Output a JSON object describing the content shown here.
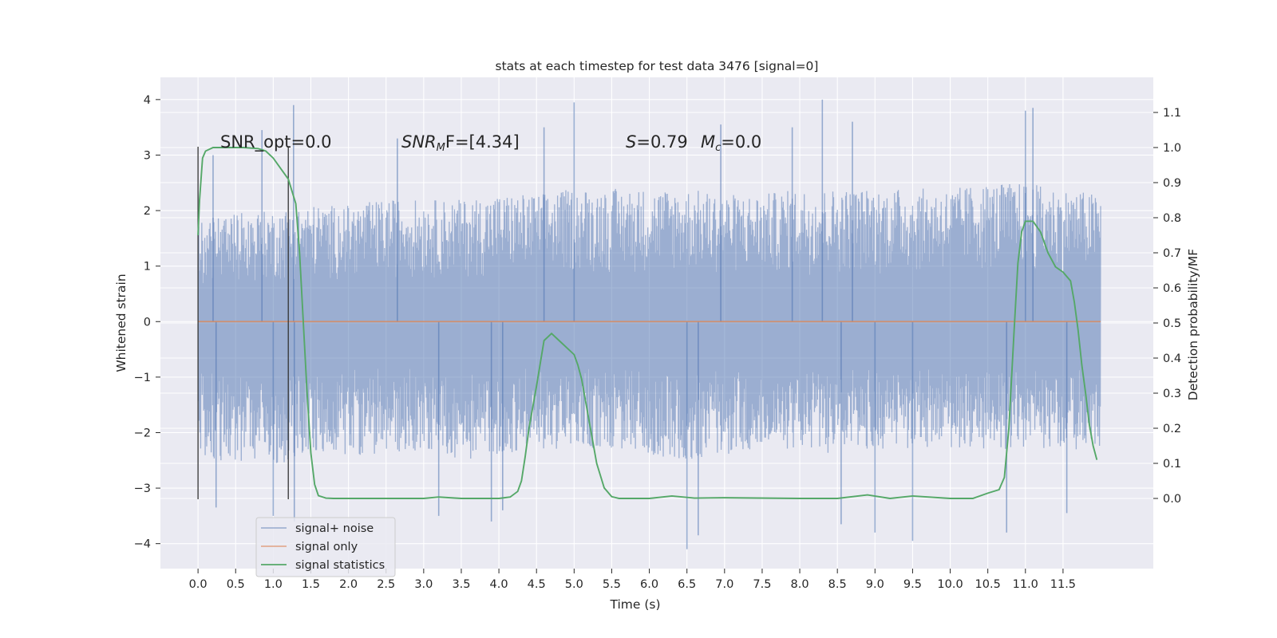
{
  "chart_data": {
    "type": "line",
    "title": "stats at each timestep for test data 3476 [signal=0]",
    "xlabel": "Time (s)",
    "ylabel_left": "Whitened strain",
    "ylabel_right": "Detection probability/MF",
    "xlim": [
      -0.5,
      12.7
    ],
    "ylim_left": [
      -4.45,
      4.4
    ],
    "ylim_right": [
      -0.2,
      1.2
    ],
    "x_ticks": [
      "0.0",
      "0.5",
      "1.0",
      "1.5",
      "2.0",
      "2.5",
      "3.0",
      "3.5",
      "4.0",
      "4.5",
      "5.0",
      "5.5",
      "6.0",
      "6.5",
      "7.0",
      "7.5",
      "8.0",
      "8.5",
      "9.0",
      "9.5",
      "10.0",
      "10.5",
      "11.0",
      "11.5"
    ],
    "y_ticks_left": [
      "4",
      "3",
      "2",
      "1",
      "0",
      "−1",
      "−2",
      "−3",
      "−4"
    ],
    "y_ticks_right": [
      "1.1",
      "1.0",
      "0.9",
      "0.8",
      "0.7",
      "0.6",
      "0.5",
      "0.4",
      "0.3",
      "0.2",
      "0.1",
      "0.0"
    ],
    "grid": true,
    "legend_position": "lower-left",
    "colors": {
      "background": "#eaeaf2",
      "grid": "#ffffff",
      "noise": "#4c72b0",
      "signal": "#dd8452",
      "stats": "#55a868",
      "markers": "#333333"
    },
    "annotations": {
      "snr_opt": "SNR_opt=0.0",
      "snr_mf_base": "SNR",
      "snr_mf_sub": "M",
      "snr_mf_rest": "F=[4.34]",
      "s_base": "S",
      "s_rest": "=0.79",
      "mc_base": "M",
      "mc_sub": "c",
      "mc_rest": "=0.0"
    },
    "vertical_markers": [
      0.0,
      1.2
    ],
    "series": [
      {
        "name": "signal+ noise",
        "kind": "noise",
        "x_range": [
          0.0,
          12.0
        ],
        "envelope": [
          [
            0.0,
            1.85,
            -2.5
          ],
          [
            0.5,
            1.95,
            -2.5
          ],
          [
            1.0,
            2.0,
            -2.6
          ],
          [
            1.5,
            2.1,
            -2.4
          ],
          [
            2.0,
            2.1,
            -2.4
          ],
          [
            2.5,
            2.2,
            -2.4
          ],
          [
            3.0,
            2.2,
            -2.3
          ],
          [
            3.5,
            2.2,
            -2.5
          ],
          [
            4.0,
            2.3,
            -2.4
          ],
          [
            4.5,
            2.3,
            -2.3
          ],
          [
            5.0,
            2.4,
            -2.3
          ],
          [
            5.5,
            2.4,
            -2.3
          ],
          [
            6.0,
            2.4,
            -2.4
          ],
          [
            6.5,
            2.4,
            -2.5
          ],
          [
            7.0,
            2.3,
            -2.4
          ],
          [
            7.5,
            2.3,
            -2.3
          ],
          [
            8.0,
            2.4,
            -2.3
          ],
          [
            8.5,
            2.4,
            -2.4
          ],
          [
            9.0,
            2.4,
            -2.3
          ],
          [
            9.5,
            2.4,
            -2.3
          ],
          [
            10.0,
            2.4,
            -2.3
          ],
          [
            10.5,
            2.5,
            -2.3
          ],
          [
            11.0,
            2.5,
            -2.3
          ],
          [
            11.5,
            2.4,
            -2.3
          ],
          [
            12.0,
            2.3,
            -2.3
          ]
        ],
        "spikes": [
          [
            0.2,
            3.0
          ],
          [
            0.24,
            -3.35
          ],
          [
            0.85,
            3.45
          ],
          [
            1.0,
            -3.5
          ],
          [
            1.27,
            3.9
          ],
          [
            1.28,
            -3.6
          ],
          [
            2.65,
            3.3
          ],
          [
            3.2,
            -3.5
          ],
          [
            3.9,
            -3.6
          ],
          [
            4.05,
            -3.4
          ],
          [
            4.6,
            3.5
          ],
          [
            5.0,
            3.95
          ],
          [
            6.5,
            -4.1
          ],
          [
            6.65,
            -3.85
          ],
          [
            6.95,
            3.55
          ],
          [
            8.3,
            4.0
          ],
          [
            8.55,
            -3.65
          ],
          [
            8.7,
            3.6
          ],
          [
            9.0,
            -3.8
          ],
          [
            9.5,
            -3.95
          ],
          [
            11.0,
            3.8
          ],
          [
            11.1,
            3.85
          ],
          [
            11.55,
            -3.45
          ],
          [
            10.75,
            -3.8
          ],
          [
            7.9,
            3.5
          ]
        ]
      },
      {
        "name": "signal only",
        "kind": "flat",
        "x": [
          0.0,
          12.0
        ],
        "y": [
          0.0,
          0.0
        ]
      },
      {
        "name": "signal statistics",
        "kind": "line",
        "x": [
          0.0,
          0.02,
          0.06,
          0.1,
          0.2,
          0.3,
          0.4,
          0.6,
          0.8,
          0.9,
          1.0,
          1.1,
          1.2,
          1.3,
          1.35,
          1.4,
          1.45,
          1.5,
          1.55,
          1.6,
          1.7,
          1.8,
          2.0,
          2.5,
          3.0,
          3.2,
          3.5,
          4.0,
          4.15,
          4.25,
          4.3,
          4.35,
          4.4,
          4.5,
          4.6,
          4.7,
          4.8,
          4.9,
          5.0,
          5.05,
          5.1,
          5.2,
          5.3,
          5.4,
          5.5,
          5.6,
          6.0,
          6.3,
          6.6,
          7.0,
          8.0,
          8.5,
          8.9,
          9.2,
          9.5,
          10.0,
          10.3,
          10.5,
          10.65,
          10.72,
          10.78,
          10.85,
          10.9,
          10.95,
          11.0,
          11.1,
          11.2,
          11.3,
          11.4,
          11.5,
          11.6,
          11.65,
          11.7,
          11.75,
          11.8,
          11.85,
          11.9,
          11.95
        ],
        "y": [
          0.75,
          0.85,
          0.97,
          0.99,
          1.0,
          1.0,
          1.0,
          1.0,
          0.997,
          0.99,
          0.97,
          0.94,
          0.91,
          0.84,
          0.7,
          0.5,
          0.3,
          0.13,
          0.04,
          0.008,
          0.001,
          0.0,
          0.0,
          0.0,
          0.0,
          0.004,
          0.0,
          0.0,
          0.004,
          0.02,
          0.05,
          0.12,
          0.2,
          0.32,
          0.45,
          0.47,
          0.45,
          0.43,
          0.41,
          0.38,
          0.34,
          0.22,
          0.1,
          0.03,
          0.005,
          0.0,
          0.0,
          0.007,
          0.001,
          0.002,
          0.0,
          0.0,
          0.01,
          0.0,
          0.007,
          0.0,
          0.0,
          0.015,
          0.025,
          0.06,
          0.2,
          0.48,
          0.67,
          0.76,
          0.79,
          0.79,
          0.76,
          0.7,
          0.66,
          0.645,
          0.62,
          0.56,
          0.48,
          0.38,
          0.3,
          0.21,
          0.15,
          0.11
        ]
      }
    ]
  }
}
